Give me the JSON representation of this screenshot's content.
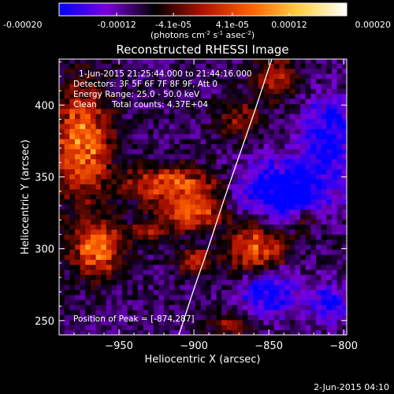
{
  "chart_data": {
    "type": "heatmap",
    "title": "Reconstructed RHESSI Image",
    "xlabel": "Heliocentric X (arcsec)",
    "ylabel": "Heliocentric Y (arcsec)",
    "xlim": [
      -990,
      -798
    ],
    "ylim": [
      240,
      432
    ],
    "x_ticks": [
      -950,
      -900,
      -850,
      -800
    ],
    "y_ticks": [
      250,
      300,
      350,
      400
    ],
    "colorbar": {
      "range": [
        -0.0002,
        0.0002
      ],
      "ticks": [
        {
          "value": -0.0002,
          "label": "-0.00020"
        },
        {
          "value": -0.00012,
          "label": "-0.00012"
        },
        {
          "value": -4.1e-05,
          "label": "-4.1e-05"
        },
        {
          "value": 4.1e-05,
          "label": "4.1e-05"
        },
        {
          "value": 0.00012,
          "label": "0.00012"
        },
        {
          "value": 0.0002,
          "label": "0.00020"
        }
      ],
      "units_prefix": "(photons cm",
      "units_mid1": " s",
      "units_mid2": " asec",
      "units_suffix": ")",
      "units_exp1": "-2",
      "units_exp2": "-1",
      "units_exp3": "-2",
      "colors": [
        "#0000ff",
        "#7a00d8",
        "#000000",
        "#b01000",
        "#ff6000",
        "#ffd040",
        "#ffffff"
      ]
    },
    "annotations": [
      "1-Jun-2015 21:25:44.000 to 21:44:16.000",
      "Detectors: 3F 5F 6F 7F 8F 9F, Att 0",
      "Energy Range: 25.0 - 50.0 keV",
      "Clean",
      "Total counts: 4.37E+04"
    ],
    "peak_label": "Position of Peak = [-874,287]",
    "limb_curve": [
      [
        -910,
        240
      ],
      [
        -900,
        272
      ],
      [
        -890,
        302
      ],
      [
        -880,
        334
      ],
      [
        -870,
        364
      ],
      [
        -860,
        394
      ],
      [
        -848,
        432
      ]
    ],
    "sources": [
      {
        "x": -975,
        "y": 375,
        "sx": 13,
        "sy": 26,
        "a": 0.00019
      },
      {
        "x": -965,
        "y": 300,
        "sx": 12,
        "sy": 13,
        "a": 0.00018
      },
      {
        "x": -915,
        "y": 345,
        "sx": 22,
        "sy": 9,
        "a": 0.00016
      },
      {
        "x": -900,
        "y": 325,
        "sx": 15,
        "sy": 8,
        "a": 0.00015
      },
      {
        "x": -900,
        "y": 292,
        "sx": 8,
        "sy": 6,
        "a": 0.00012
      },
      {
        "x": -930,
        "y": 312,
        "sx": 10,
        "sy": 5,
        "a": 9e-05
      },
      {
        "x": -858,
        "y": 300,
        "sx": 14,
        "sy": 14,
        "a": 0.00015
      },
      {
        "x": -845,
        "y": 420,
        "sx": 10,
        "sy": 10,
        "a": 0.00011
      },
      {
        "x": -870,
        "y": 390,
        "sx": 10,
        "sy": 10,
        "a": 8e-05
      },
      {
        "x": -825,
        "y": 320,
        "sx": 8,
        "sy": 8,
        "a": 7e-05
      },
      {
        "x": -875,
        "y": 248,
        "sx": 12,
        "sy": 6,
        "a": 8e-05
      }
    ],
    "negative_sources": [
      {
        "x": -840,
        "y": 340,
        "sx": 22,
        "sy": 15,
        "a": 0.00016
      },
      {
        "x": -850,
        "y": 270,
        "sx": 14,
        "sy": 12,
        "a": 0.00013
      },
      {
        "x": -810,
        "y": 380,
        "sx": 12,
        "sy": 18,
        "a": 0.00012
      },
      {
        "x": -810,
        "y": 262,
        "sx": 9,
        "sy": 9,
        "a": 0.0001
      }
    ]
  },
  "footer": {
    "date": "2-Jun-2015 04:10"
  }
}
